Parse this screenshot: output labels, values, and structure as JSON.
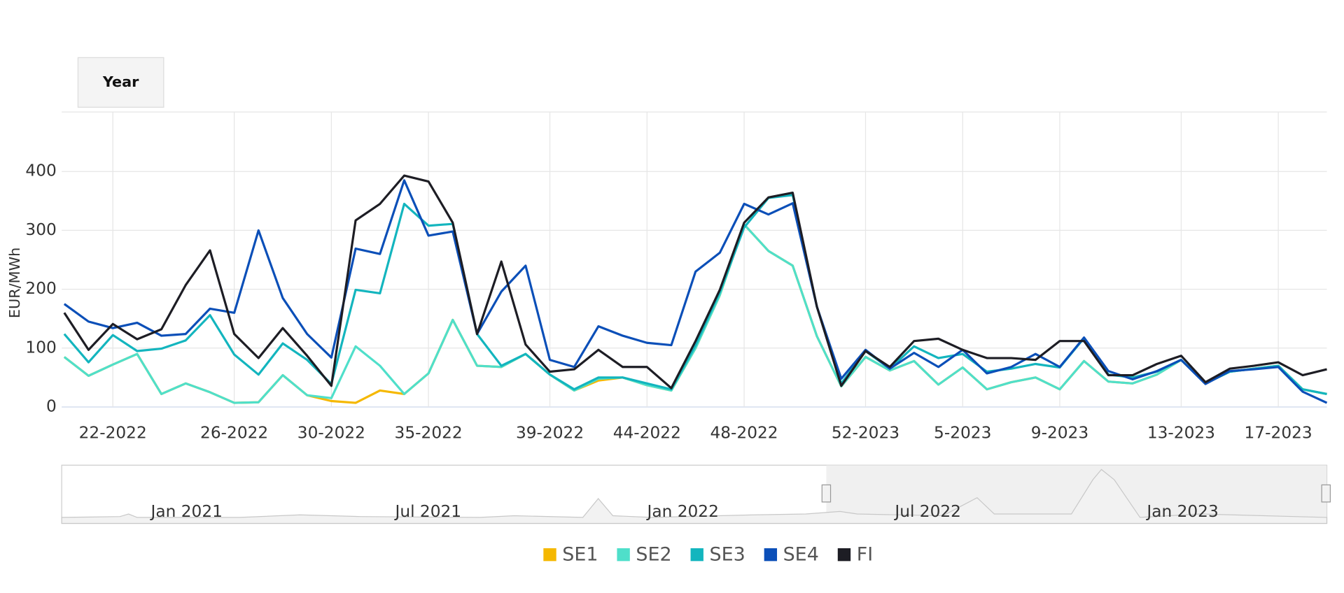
{
  "chart_data": {
    "type": "line",
    "range_button": "Year",
    "y_axis_title": "EUR/MWh",
    "ylim": [
      0,
      500
    ],
    "yticks": [
      0,
      100,
      200,
      300,
      400
    ],
    "grid": true,
    "categories": [
      null,
      null,
      "22-2022",
      null,
      null,
      null,
      null,
      "26-2022",
      null,
      null,
      null,
      "30-2022",
      null,
      null,
      null,
      "35-2022",
      null,
      null,
      null,
      null,
      "39-2022",
      null,
      null,
      null,
      "44-2022",
      null,
      null,
      null,
      "48-2022",
      null,
      null,
      null,
      null,
      "52-2023",
      null,
      null,
      null,
      "5-2023",
      null,
      null,
      null,
      "9-2023",
      null,
      null,
      null,
      null,
      "13-2023",
      null,
      null,
      null,
      "17-2023",
      null,
      null
    ],
    "series": [
      {
        "name": "SE1",
        "color": "#f5b800",
        "values": [
          85,
          53,
          72,
          90,
          22,
          40,
          25,
          7,
          8,
          54,
          20,
          10,
          7,
          28,
          22,
          57,
          148,
          70,
          68,
          90,
          55,
          28,
          45,
          50,
          37,
          28,
          100,
          190,
          310,
          265,
          240,
          120,
          35,
          85,
          62,
          78,
          38,
          67,
          30,
          42,
          50,
          30,
          78,
          43,
          40,
          55,
          80,
          40,
          60,
          65,
          70,
          30,
          22
        ]
      },
      {
        "name": "SE2",
        "color": "#4fdfca",
        "values": [
          85,
          53,
          72,
          90,
          22,
          40,
          25,
          7,
          8,
          54,
          20,
          15,
          103,
          70,
          22,
          57,
          148,
          70,
          68,
          90,
          55,
          28,
          48,
          50,
          37,
          28,
          100,
          190,
          310,
          265,
          240,
          120,
          35,
          85,
          62,
          78,
          38,
          67,
          30,
          42,
          50,
          30,
          78,
          43,
          40,
          55,
          80,
          40,
          60,
          65,
          70,
          30,
          22
        ]
      },
      {
        "name": "SE3",
        "color": "#13b5be",
        "values": [
          124,
          76,
          122,
          95,
          99,
          113,
          156,
          89,
          55,
          108,
          80,
          39,
          199,
          193,
          345,
          308,
          311,
          124,
          70,
          90,
          55,
          30,
          50,
          50,
          40,
          30,
          105,
          195,
          305,
          355,
          360,
          170,
          40,
          95,
          65,
          103,
          83,
          90,
          60,
          65,
          73,
          67,
          117,
          55,
          50,
          60,
          80,
          40,
          60,
          65,
          70,
          30,
          22
        ]
      },
      {
        "name": "SE4",
        "color": "#0b4fb8",
        "values": [
          175,
          145,
          134,
          143,
          121,
          124,
          167,
          160,
          300,
          185,
          124,
          84,
          269,
          260,
          385,
          291,
          298,
          124,
          196,
          240,
          80,
          68,
          137,
          121,
          109,
          105,
          230,
          262,
          345,
          327,
          346,
          170,
          48,
          97,
          65,
          92,
          68,
          97,
          57,
          68,
          90,
          68,
          118,
          61,
          47,
          61,
          80,
          39,
          61,
          64,
          68,
          26,
          7
        ]
      },
      {
        "name": "FI",
        "color": "#1d1d24",
        "values": [
          160,
          97,
          141,
          115,
          132,
          207,
          266,
          124,
          83,
          134,
          87,
          36,
          317,
          345,
          393,
          383,
          313,
          124,
          247,
          106,
          60,
          64,
          97,
          68,
          68,
          32,
          112,
          199,
          313,
          356,
          364,
          170,
          36,
          95,
          68,
          112,
          116,
          97,
          83,
          83,
          80,
          112,
          112,
          54,
          54,
          73,
          87,
          42,
          65,
          70,
          76,
          54,
          64
        ]
      }
    ],
    "navigator_labels": [
      "Jan 2021",
      "Jul 2021",
      "Jan 2022",
      "Jul 2022",
      "Jan 2023"
    ]
  }
}
